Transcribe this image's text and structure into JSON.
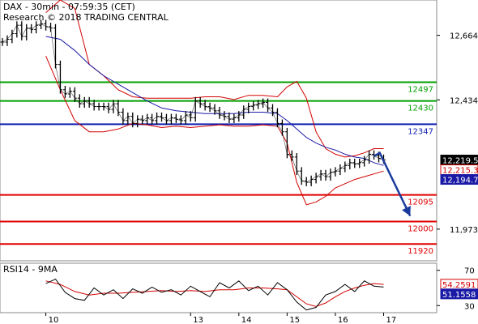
{
  "header": {
    "title": "DAX - 30min - 07:59:35 (CET)",
    "credit": "Research © 2018 TRADING CENTRAL"
  },
  "colors": {
    "price": "#000000",
    "bollinger": "#d40000",
    "ma": "#1a1aa6",
    "support_lines": "#e00000",
    "resistance_lines": "#00a000",
    "pivot": "#1020b0",
    "arrow": "#1a3a9c",
    "rsi": "#000000",
    "rsi_signal": "#d40000"
  },
  "chart_data": [
    {
      "type": "line",
      "title": "DAX - 30min",
      "ylim": [
        11860,
        12790
      ],
      "y_ticks": [
        {
          "value": 12664,
          "label": "12,664"
        },
        {
          "value": 12434,
          "label": "12,434"
        },
        {
          "value": 11973,
          "label": "11,973"
        }
      ],
      "x_ticks": [
        {
          "x": 10,
          "label": "10"
        },
        {
          "x": 13,
          "label": "13"
        },
        {
          "x": 14,
          "label": "14"
        },
        {
          "x": 15,
          "label": "15"
        },
        {
          "x": 16,
          "label": "16"
        },
        {
          "x": 17,
          "label": "17"
        }
      ],
      "xlim": [
        9.05,
        18.1
      ],
      "levels": [
        {
          "value": 12497,
          "label": "12497",
          "kind": "resistance"
        },
        {
          "value": 12430,
          "label": "12430",
          "kind": "resistance"
        },
        {
          "value": 12347,
          "label": "12347",
          "kind": "pivot"
        },
        {
          "value": 12095,
          "label": "12095",
          "kind": "support"
        },
        {
          "value": 12000,
          "label": "12000",
          "kind": "support"
        },
        {
          "value": 11920,
          "label": "11920",
          "kind": "support"
        }
      ],
      "last_values": [
        {
          "value": 12219.5,
          "label": "12,219.5",
          "kind": "price"
        },
        {
          "value": 12215.3,
          "label": "12,215.3",
          "kind": "bollinger"
        },
        {
          "value": 12194.7,
          "label": "12,194.7",
          "kind": "ma"
        }
      ],
      "series": [
        {
          "key": "close",
          "x": [
            9.1,
            9.2,
            9.3,
            9.4,
            9.5,
            9.6,
            9.7,
            9.8,
            9.9,
            10.0,
            10.1,
            10.2,
            10.3,
            10.4,
            10.5,
            10.6,
            10.7,
            10.8,
            10.9,
            11.0,
            11.1,
            11.2,
            11.3,
            11.4,
            11.5,
            11.6,
            11.7,
            11.8,
            11.9,
            12.0,
            12.1,
            12.2,
            12.3,
            12.4,
            12.5,
            12.6,
            12.7,
            12.8,
            12.9,
            13.0,
            13.1,
            13.2,
            13.3,
            13.4,
            13.5,
            13.6,
            13.7,
            13.8,
            13.9,
            14.0,
            14.1,
            14.2,
            14.3,
            14.4,
            14.5,
            14.6,
            14.7,
            14.8,
            14.9,
            15.0,
            15.1,
            15.2,
            15.3,
            15.4,
            15.5,
            15.6,
            15.7,
            15.8,
            15.9,
            16.0,
            16.1,
            16.2,
            16.3,
            16.4,
            16.5,
            16.6,
            16.7,
            16.8,
            16.9,
            17.0
          ],
          "y": [
            12640,
            12650,
            12670,
            12700,
            12660,
            12690,
            12685,
            12700,
            12705,
            12695,
            12690,
            12560,
            12470,
            12455,
            12465,
            12440,
            12420,
            12430,
            12420,
            12410,
            12410,
            12410,
            12400,
            12420,
            12390,
            12360,
            12375,
            12350,
            12365,
            12360,
            12370,
            12360,
            12375,
            12370,
            12360,
            12370,
            12365,
            12360,
            12380,
            12370,
            12430,
            12420,
            12410,
            12405,
            12395,
            12380,
            12375,
            12365,
            12370,
            12380,
            12400,
            12410,
            12415,
            12420,
            12425,
            12405,
            12390,
            12350,
            12320,
            12240,
            12230,
            12180,
            12145,
            12140,
            12150,
            12160,
            12170,
            12160,
            12175,
            12180,
            12190,
            12200,
            12210,
            12205,
            12210,
            12220,
            12240,
            12235,
            12225,
            12220
          ]
        },
        {
          "key": "bb_upper",
          "x": [
            10.0,
            10.3,
            10.6,
            10.9,
            11.2,
            11.5,
            11.8,
            12.1,
            12.4,
            12.7,
            13.0,
            13.3,
            13.6,
            13.9,
            14.2,
            14.5,
            14.8,
            15.0,
            15.2,
            15.4,
            15.6,
            15.8,
            16.0,
            16.2,
            16.4,
            16.6,
            16.8,
            17.0
          ],
          "y": [
            12745,
            12790,
            12760,
            12560,
            12520,
            12470,
            12445,
            12440,
            12440,
            12440,
            12440,
            12445,
            12445,
            12435,
            12450,
            12450,
            12445,
            12480,
            12500,
            12440,
            12320,
            12260,
            12240,
            12230,
            12235,
            12245,
            12260,
            12260
          ]
        },
        {
          "key": "bb_lower",
          "x": [
            10.0,
            10.3,
            10.6,
            10.9,
            11.2,
            11.5,
            11.8,
            12.1,
            12.4,
            12.7,
            13.0,
            13.3,
            13.6,
            13.9,
            14.2,
            14.5,
            14.8,
            15.0,
            15.2,
            15.4,
            15.6,
            15.8,
            16.0,
            16.2,
            16.4,
            16.6,
            16.8,
            17.0
          ],
          "y": [
            12590,
            12470,
            12360,
            12320,
            12320,
            12330,
            12350,
            12345,
            12335,
            12340,
            12335,
            12340,
            12345,
            12340,
            12340,
            12345,
            12340,
            12280,
            12140,
            12060,
            12070,
            12090,
            12120,
            12135,
            12150,
            12160,
            12170,
            12180
          ]
        },
        {
          "key": "ma",
          "x": [
            10.0,
            10.3,
            10.6,
            10.9,
            11.2,
            11.5,
            11.8,
            12.1,
            12.4,
            12.7,
            13.0,
            13.3,
            13.6,
            13.9,
            14.2,
            14.5,
            14.8,
            15.0,
            15.2,
            15.4,
            15.6,
            15.8,
            16.0,
            16.2,
            16.4,
            16.6,
            16.8,
            17.0
          ],
          "y": [
            12660,
            12650,
            12610,
            12560,
            12520,
            12490,
            12460,
            12430,
            12405,
            12395,
            12390,
            12385,
            12385,
            12385,
            12390,
            12390,
            12385,
            12360,
            12330,
            12300,
            12280,
            12265,
            12255,
            12240,
            12230,
            12225,
            12210,
            12200
          ]
        }
      ],
      "forecast": {
        "from": [
          16.92,
          12245
        ],
        "to": [
          17.55,
          12020
        ]
      }
    },
    {
      "type": "line",
      "title": "RSI14 - 9MA",
      "ylim": [
        22,
        78
      ],
      "y_ticks": [
        {
          "value": 70,
          "label": "70"
        },
        {
          "value": 30,
          "label": "30"
        }
      ],
      "last_values": [
        {
          "value": 54.2591,
          "label": "54.2591",
          "kind": "signal"
        },
        {
          "value": 51.1558,
          "label": "51.1558",
          "kind": "rsi"
        }
      ],
      "series": [
        {
          "key": "rsi",
          "x": [
            10.0,
            10.2,
            10.4,
            10.6,
            10.8,
            11.0,
            11.2,
            11.4,
            11.6,
            11.8,
            12.0,
            12.2,
            12.4,
            12.6,
            12.8,
            13.0,
            13.2,
            13.4,
            13.6,
            13.8,
            14.0,
            14.2,
            14.4,
            14.6,
            14.8,
            15.0,
            15.2,
            15.4,
            15.6,
            15.8,
            16.0,
            16.2,
            16.4,
            16.6,
            16.8,
            17.0
          ],
          "y": [
            55,
            60,
            45,
            38,
            36,
            50,
            42,
            48,
            38,
            49,
            44,
            51,
            45,
            48,
            42,
            52,
            46,
            40,
            56,
            50,
            58,
            47,
            52,
            42,
            56,
            48,
            34,
            25,
            28,
            42,
            46,
            54,
            46,
            58,
            52,
            51
          ]
        },
        {
          "key": "signal",
          "x": [
            10.0,
            10.3,
            10.6,
            10.9,
            11.2,
            11.5,
            11.8,
            12.1,
            12.4,
            12.7,
            13.0,
            13.3,
            13.6,
            13.9,
            14.2,
            14.5,
            14.8,
            15.0,
            15.2,
            15.4,
            15.6,
            15.8,
            16.0,
            16.2,
            16.4,
            16.6,
            16.8,
            17.0
          ],
          "y": [
            58,
            54,
            46,
            42,
            44,
            44,
            45,
            46,
            47,
            46,
            47,
            46,
            48,
            48,
            50,
            50,
            49,
            48,
            40,
            32,
            29,
            33,
            40,
            46,
            50,
            53,
            55,
            54
          ]
        }
      ]
    }
  ]
}
